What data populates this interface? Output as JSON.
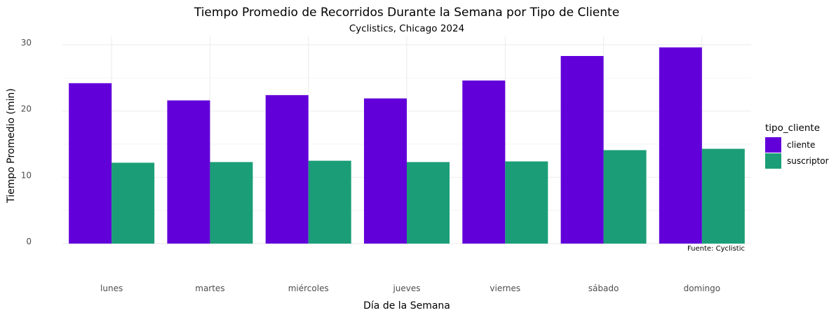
{
  "chart_data": {
    "type": "bar",
    "title": "Tiempo Promedio de Recorridos Durante la Semana por Tipo de Cliente",
    "subtitle": "Cyclistics, Chicago 2024",
    "xlabel": "Día de la Semana",
    "ylabel": "Tiempo Promedio (min)",
    "caption": "Fuente: Cyclistic",
    "categories": [
      "lunes",
      "martes",
      "miércoles",
      "jueves",
      "viernes",
      "sábado",
      "domingo"
    ],
    "series": [
      {
        "name": "cliente",
        "color": "#6200DA",
        "values": [
          24.2,
          21.6,
          22.4,
          21.9,
          24.6,
          28.3,
          29.6
        ]
      },
      {
        "name": "suscriptor",
        "color": "#1B9E77",
        "values": [
          12.2,
          12.3,
          12.5,
          12.3,
          12.4,
          14.1,
          14.3
        ]
      }
    ],
    "ylim": [
      0,
      30
    ],
    "yticks": [
      0,
      10,
      20,
      30
    ],
    "grid": true,
    "legend": {
      "title": "tipo_cliente",
      "position": "right"
    }
  }
}
